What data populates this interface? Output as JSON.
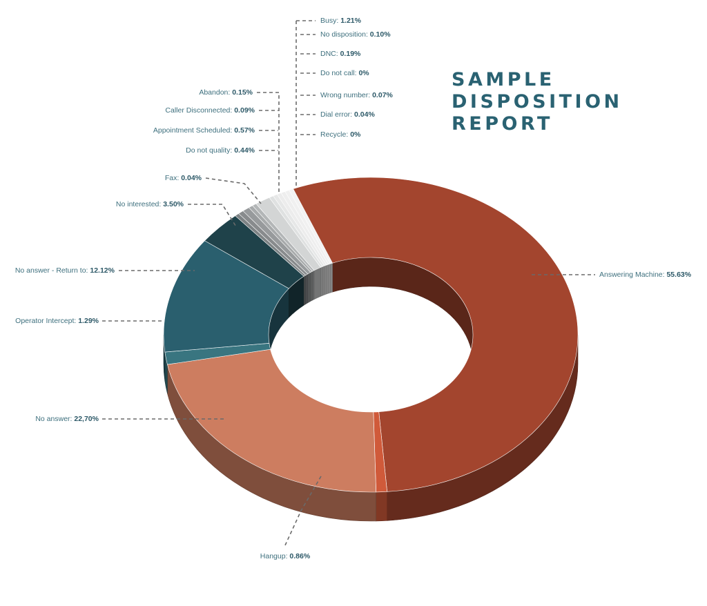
{
  "chart_data": {
    "type": "pie",
    "title_lines": [
      "SAMPLE",
      "DISPOSITION",
      "REPORT"
    ],
    "slices": [
      {
        "label": "Answering Machine",
        "value_label": "55.63%",
        "value": 55.63,
        "color": "#a3452e"
      },
      {
        "label": "Hangup",
        "value_label": "0.86%",
        "value": 0.86,
        "color": "#d05a3a"
      },
      {
        "label": "No answer",
        "value_label": "22,70%",
        "value": 22.7,
        "color": "#cd7d60"
      },
      {
        "label": "Operator Intercept",
        "value_label": "1.29%",
        "value": 1.29,
        "color": "#397580"
      },
      {
        "label": "No answer - Return to",
        "value_label": "12.12%",
        "value": 12.12,
        "color": "#2a5f6e"
      },
      {
        "label": "No interested",
        "value_label": "3.50%",
        "value": 3.5,
        "color": "#1f424a"
      },
      {
        "label": "Fax",
        "value_label": "0.04%",
        "value": 0.04,
        "color": "#7e8385"
      },
      {
        "label": "Do not quality",
        "value_label": "0.44%",
        "value": 0.44,
        "color": "#888b8d"
      },
      {
        "label": "Appointment Scheduled",
        "value_label": "0.57%",
        "value": 0.57,
        "color": "#979a9c"
      },
      {
        "label": "Caller Disconnected",
        "value_label": "0.09%",
        "value": 0.09,
        "color": "#a7aaab"
      },
      {
        "label": "Abandon",
        "value_label": "0.15%",
        "value": 0.15,
        "color": "#b3b6b7"
      },
      {
        "label": "Busy",
        "value_label": "1.21%",
        "value": 1.21,
        "color": "#d3d5d5"
      },
      {
        "label": "No disposition",
        "value_label": "0.10%",
        "value": 0.1,
        "color": "#dfe1e1"
      },
      {
        "label": "DNC",
        "value_label": "0.19%",
        "value": 0.19,
        "color": "#e6e7e7"
      },
      {
        "label": "Do not call",
        "value_label": "0%",
        "value": 0,
        "color": "#ececec"
      },
      {
        "label": "Wrong number",
        "value_label": "0.07%",
        "value": 0.07,
        "color": "#eeeeee"
      },
      {
        "label": "Dial error",
        "value_label": "0.04%",
        "value": 0.04,
        "color": "#f0f0f0"
      },
      {
        "label": "Recycle",
        "value_label": "0%",
        "value": 0,
        "color": "#f2f2f2"
      }
    ]
  }
}
